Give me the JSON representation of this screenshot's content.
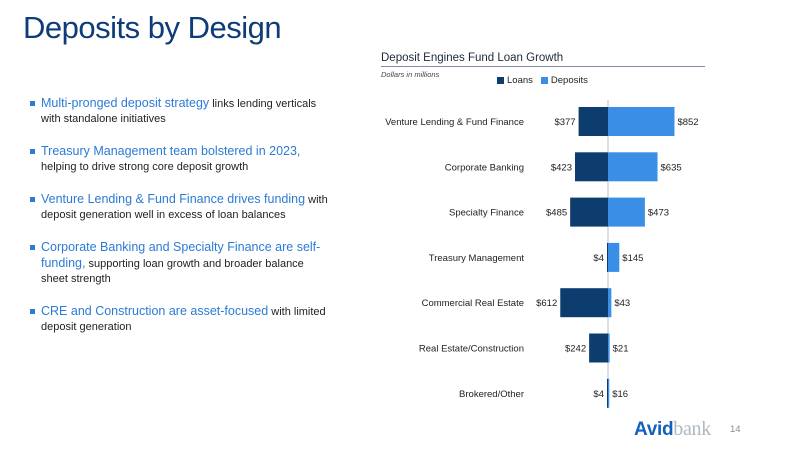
{
  "title": "Deposits by Design",
  "bullets": [
    {
      "highlight": "Multi-pronged deposit strategy",
      "rest": " links lending verticals with standalone initiatives"
    },
    {
      "highlight": "Treasury Management team bolstered in 2023,",
      "rest": " helping to drive strong core deposit growth"
    },
    {
      "highlight": "Venture Lending & Fund Finance drives funding",
      "rest": " with deposit generation well in excess of loan balances"
    },
    {
      "highlight": "Corporate Banking and Specialty Finance are self-funding,",
      "rest": " supporting loan growth and broader balance sheet strength"
    },
    {
      "highlight": "CRE and Construction are asset-focused",
      "rest": " with limited deposit generation"
    }
  ],
  "chart_data": {
    "type": "bar",
    "orientation": "horizontal-diverging",
    "title": "Deposit Engines Fund Loan Growth",
    "subtitle": "Dollars in millions",
    "legend_placement": "top",
    "categories": [
      "Venture Lending & Fund Finance",
      "Corporate Banking",
      "Specialty Finance",
      "Treasury Management",
      "Commercial Real Estate",
      "Real Estate/Construction",
      "Brokered/Other"
    ],
    "series": [
      {
        "name": "Loans",
        "color": "#0d3c6e",
        "direction": "left",
        "values": [
          377,
          423,
          485,
          4,
          612,
          242,
          4
        ],
        "labels": [
          "$377",
          "$423",
          "$485",
          "$4",
          "$612",
          "$242",
          "$4"
        ]
      },
      {
        "name": "Deposits",
        "color": "#3a8ee6",
        "direction": "right",
        "values": [
          852,
          635,
          473,
          145,
          43,
          21,
          16
        ],
        "labels": [
          "$852",
          "$635",
          "$473",
          "$145",
          "$43",
          "$21",
          "$16"
        ]
      }
    ]
  },
  "footer": {
    "logo_avid": "Avid",
    "logo_bank": "bank",
    "page_number": "14"
  }
}
